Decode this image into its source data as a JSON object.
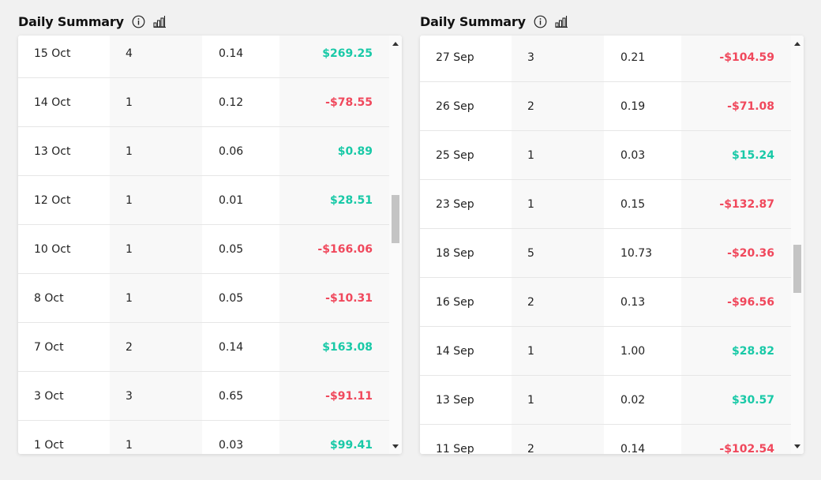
{
  "panels": [
    {
      "title": "Daily Summary",
      "info_icon": "info-circle-icon",
      "chart_icon": "bar-chart-icon",
      "rows": [
        {
          "date": "15 Oct",
          "count": "4",
          "ratio": "0.14",
          "pnl": "$269.25",
          "sign": "pos"
        },
        {
          "date": "14 Oct",
          "count": "1",
          "ratio": "0.12",
          "pnl": "-$78.55",
          "sign": "neg"
        },
        {
          "date": "13 Oct",
          "count": "1",
          "ratio": "0.06",
          "pnl": "$0.89",
          "sign": "pos"
        },
        {
          "date": "12 Oct",
          "count": "1",
          "ratio": "0.01",
          "pnl": "$28.51",
          "sign": "pos"
        },
        {
          "date": "10 Oct",
          "count": "1",
          "ratio": "0.05",
          "pnl": "-$166.06",
          "sign": "neg"
        },
        {
          "date": "8 Oct",
          "count": "1",
          "ratio": "0.05",
          "pnl": "-$10.31",
          "sign": "neg"
        },
        {
          "date": "7 Oct",
          "count": "2",
          "ratio": "0.14",
          "pnl": "$163.08",
          "sign": "pos"
        },
        {
          "date": "3 Oct",
          "count": "3",
          "ratio": "0.65",
          "pnl": "-$91.11",
          "sign": "neg"
        },
        {
          "date": "1 Oct",
          "count": "1",
          "ratio": "0.03",
          "pnl": "$99.41",
          "sign": "pos"
        }
      ]
    },
    {
      "title": "Daily Summary",
      "info_icon": "info-circle-icon",
      "chart_icon": "bar-chart-icon",
      "rows": [
        {
          "date": "27 Sep",
          "count": "3",
          "ratio": "0.21",
          "pnl": "-$104.59",
          "sign": "neg"
        },
        {
          "date": "26 Sep",
          "count": "2",
          "ratio": "0.19",
          "pnl": "-$71.08",
          "sign": "neg"
        },
        {
          "date": "25 Sep",
          "count": "1",
          "ratio": "0.03",
          "pnl": "$15.24",
          "sign": "pos"
        },
        {
          "date": "23 Sep",
          "count": "1",
          "ratio": "0.15",
          "pnl": "-$132.87",
          "sign": "neg"
        },
        {
          "date": "18 Sep",
          "count": "5",
          "ratio": "10.73",
          "pnl": "-$20.36",
          "sign": "neg"
        },
        {
          "date": "16 Sep",
          "count": "2",
          "ratio": "0.13",
          "pnl": "-$96.56",
          "sign": "neg"
        },
        {
          "date": "14 Sep",
          "count": "1",
          "ratio": "1.00",
          "pnl": "$28.82",
          "sign": "pos"
        },
        {
          "date": "13 Sep",
          "count": "1",
          "ratio": "0.02",
          "pnl": "$30.57",
          "sign": "pos"
        },
        {
          "date": "11 Sep",
          "count": "2",
          "ratio": "0.14",
          "pnl": "-$102.54",
          "sign": "neg"
        }
      ]
    }
  ],
  "colors": {
    "positive": "#19c9a7",
    "negative": "#f0485c",
    "scroll_thumb": "#c4c4c4"
  },
  "icons": {
    "scroll_up": "scroll-up-arrow-icon",
    "scroll_down": "scroll-down-arrow-icon"
  }
}
